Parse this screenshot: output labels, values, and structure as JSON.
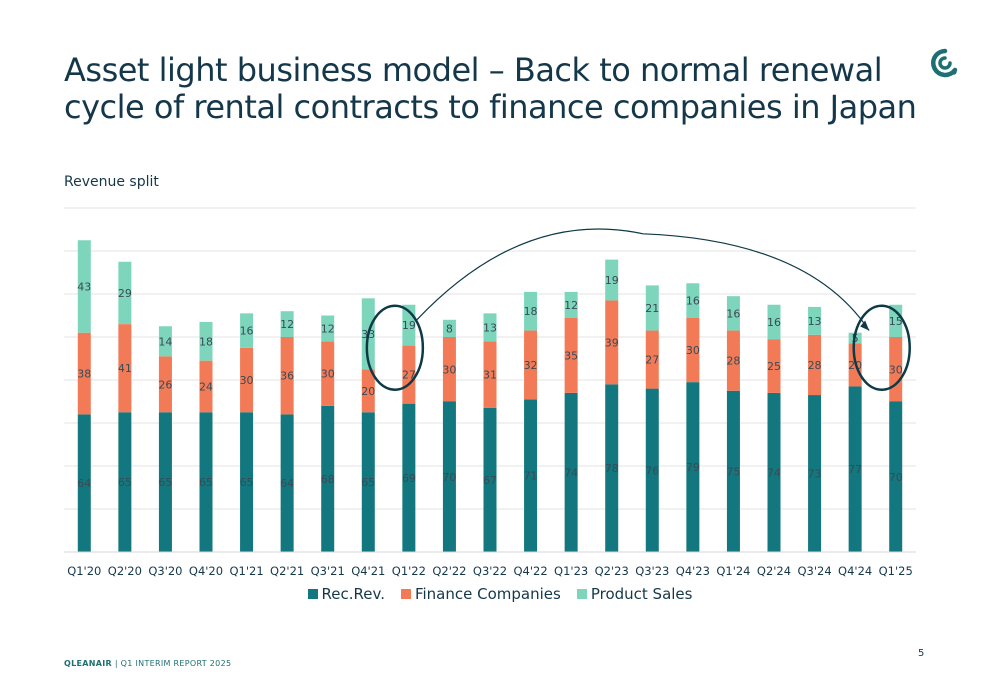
{
  "page": {
    "title": "Asset light business model – Back to normal renewal cycle of rental contracts to finance companies in Japan",
    "subtitle": "Revenue split",
    "footer_brand": "QLEANAIR",
    "footer_text": " | Q1 INTERIM REPORT 2025",
    "page_number": "5"
  },
  "colors": {
    "rec_rev": "#12777e",
    "finance": "#f27a57",
    "product": "#7dd6bb",
    "title": "#15374a",
    "circle": "#0d3a46"
  },
  "icons": {
    "logo": "qleanair-logo-icon"
  },
  "chart_data": {
    "type": "bar",
    "stacked": true,
    "title": "Revenue split",
    "categories": [
      "Q1'20",
      "Q2'20",
      "Q3'20",
      "Q4'20",
      "Q1'21",
      "Q2'21",
      "Q3'21",
      "Q4'21",
      "Q1'22",
      "Q2'22",
      "Q3'22",
      "Q4'22",
      "Q1'23",
      "Q2'23",
      "Q3'23",
      "Q4'23",
      "Q1'24",
      "Q2'24",
      "Q3'24",
      "Q4'24",
      "Q1'25"
    ],
    "series": [
      {
        "name": "Rec.Rev.",
        "values": [
          64,
          65,
          65,
          65,
          65,
          64,
          68,
          65,
          69,
          70,
          67,
          71,
          74,
          78,
          76,
          79,
          75,
          74,
          73,
          77,
          70
        ]
      },
      {
        "name": "Finance Companies",
        "values": [
          38,
          41,
          26,
          24,
          30,
          36,
          30,
          20,
          27,
          30,
          31,
          32,
          35,
          39,
          27,
          30,
          28,
          25,
          28,
          20,
          30
        ]
      },
      {
        "name": "Product Sales",
        "values": [
          43,
          29,
          14,
          18,
          16,
          12,
          12,
          33,
          19,
          8,
          13,
          18,
          12,
          19,
          21,
          16,
          16,
          16,
          13,
          5,
          15
        ]
      }
    ],
    "ylim": [
      0,
      160
    ],
    "grid": true,
    "legend": "bottom",
    "annotations": [
      {
        "type": "circle",
        "category": "Q1'22"
      },
      {
        "type": "circle",
        "category": "Q1'25"
      },
      {
        "type": "arrow",
        "from": "Q1'22",
        "to": "Q4'24"
      }
    ]
  }
}
